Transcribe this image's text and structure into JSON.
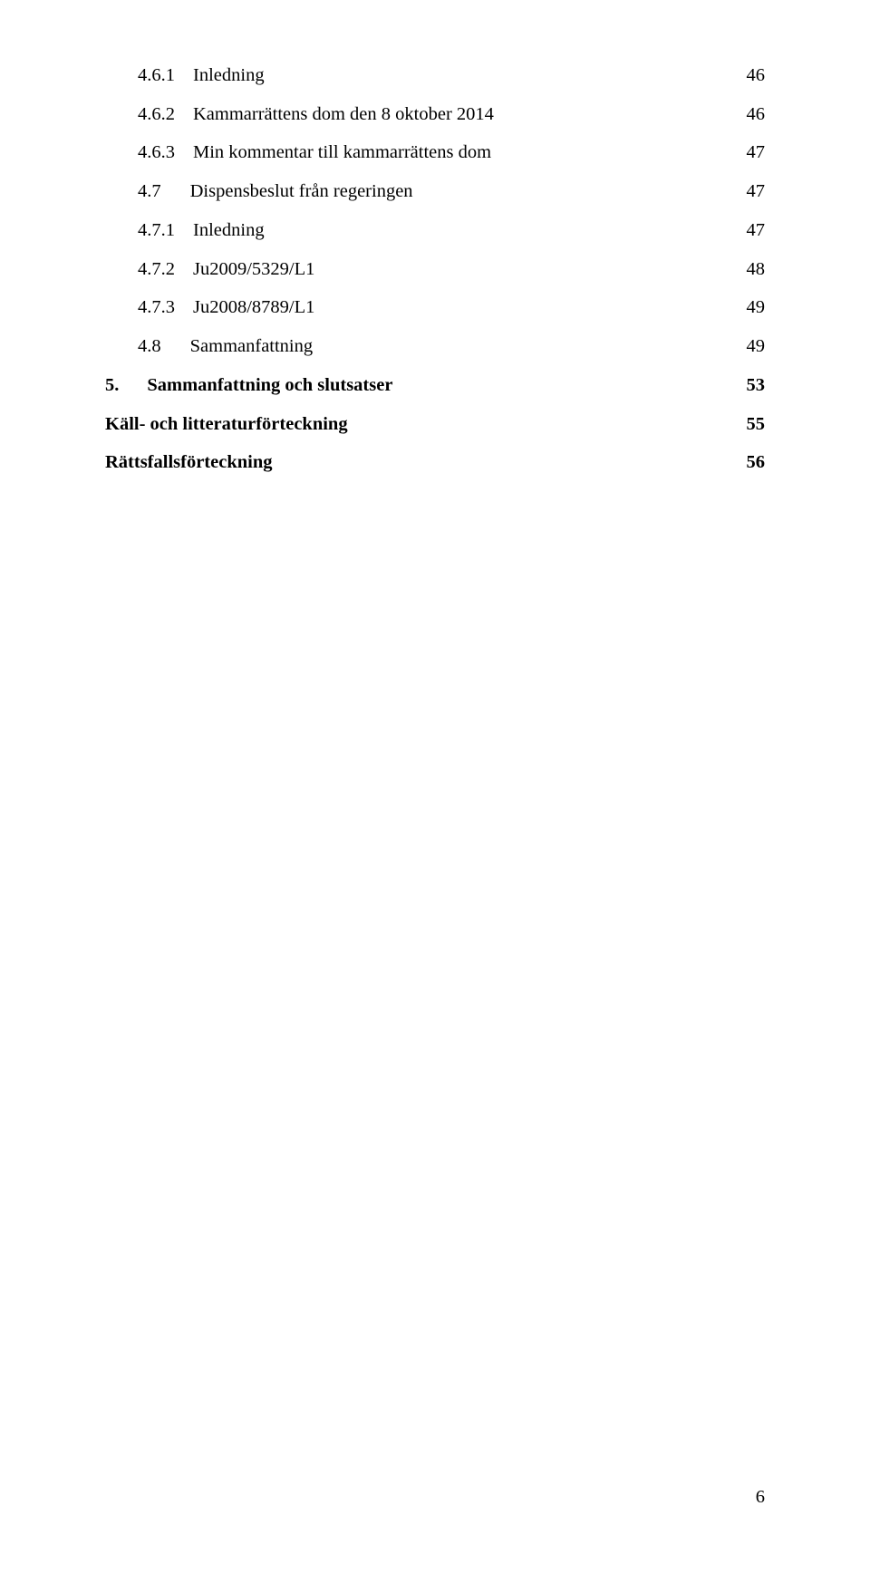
{
  "font": {
    "family": "Times New Roman",
    "body_size_pt": 12
  },
  "colors": {
    "text": "#000000",
    "background": "#ffffff"
  },
  "page_number": "6",
  "toc": [
    {
      "number": "4.6.1",
      "title": "Inledning",
      "page": "46",
      "indent": 1,
      "bold": false,
      "gap": "narrow"
    },
    {
      "number": "4.6.2",
      "title": "Kammarrättens dom den 8 oktober 2014",
      "page": "46",
      "indent": 1,
      "bold": false,
      "gap": "narrow"
    },
    {
      "number": "4.6.3",
      "title": "Min kommentar till kammarrättens dom",
      "page": "47",
      "indent": 1,
      "bold": false,
      "gap": "narrow"
    },
    {
      "number": "4.7",
      "title": "Dispensbeslut från regeringen",
      "page": "47",
      "indent": 1,
      "bold": false,
      "gap": "wide"
    },
    {
      "number": "4.7.1",
      "title": "Inledning",
      "page": "47",
      "indent": 1,
      "bold": false,
      "gap": "narrow"
    },
    {
      "number": "4.7.2",
      "title": "Ju2009/5329/L1",
      "page": "48",
      "indent": 1,
      "bold": false,
      "gap": "narrow"
    },
    {
      "number": "4.7.3",
      "title": "Ju2008/8789/L1",
      "page": "49",
      "indent": 1,
      "bold": false,
      "gap": "narrow"
    },
    {
      "number": "4.8",
      "title": "Sammanfattning",
      "page": "49",
      "indent": 1,
      "bold": false,
      "gap": "wide"
    },
    {
      "number": "5.",
      "title": "Sammanfattning och slutsatser",
      "page": "53",
      "indent": 0,
      "bold": true,
      "gap": "chapter"
    },
    {
      "number": "",
      "title": "Käll- och litteraturförteckning",
      "page": "55",
      "indent": 0,
      "bold": true,
      "gap": "none"
    },
    {
      "number": "",
      "title": "Rättsfallsförteckning",
      "page": "56",
      "indent": 0,
      "bold": true,
      "gap": "none"
    }
  ]
}
